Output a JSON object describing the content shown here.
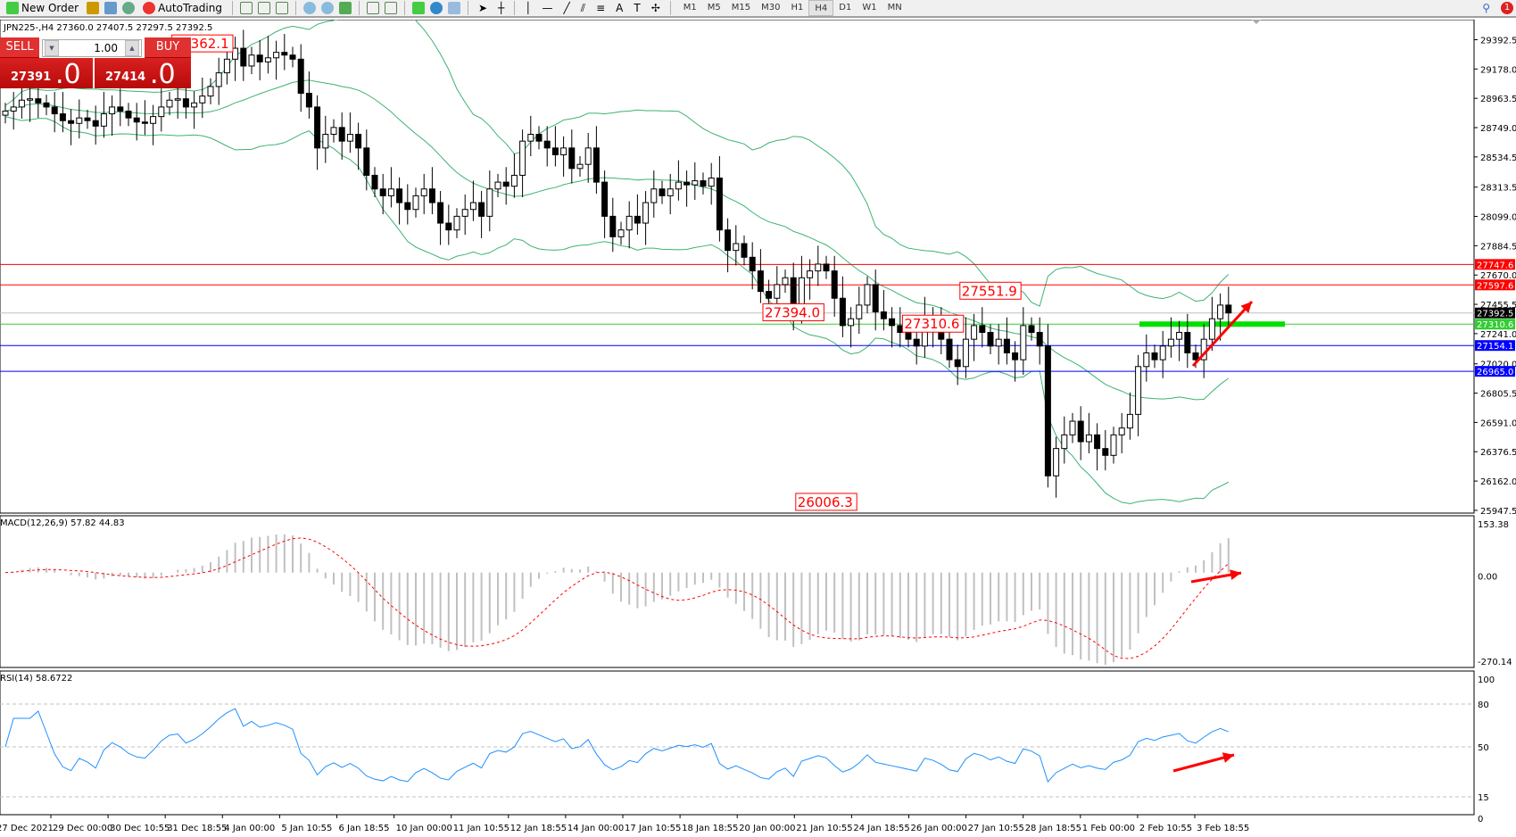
{
  "toolbar": {
    "new_order": "New Order",
    "auto_trading": "AutoTrading",
    "timeframes": [
      "M1",
      "M5",
      "M15",
      "M30",
      "H1",
      "H4",
      "D1",
      "W1",
      "MN"
    ],
    "active_timeframe": "H4",
    "notification_count": "1"
  },
  "symbol_info": "JPN225-,H4  27360.0 27407.5 27297.5 27392.5",
  "trade_panel": {
    "sell": "SELL",
    "buy": "BUY",
    "lots": "1.00",
    "sell_price_small": "27391",
    "sell_price_big": ".0",
    "buy_price_small": "27414",
    "buy_price_big": ".0"
  },
  "colors": {
    "bull_candle": "#ffffff",
    "bear_candle": "#000000",
    "bands": "#3cb371",
    "macd_hist": "#c0c0c0",
    "macd_signal": "#ff0000",
    "rsi": "#1e90ff",
    "arrow": "#ff0000"
  },
  "price_axis": [
    "29392.5",
    "29178.0",
    "28963.5",
    "28749.0",
    "28534.5",
    "28313.5",
    "28099.0",
    "27884.5",
    "27670.0",
    "27455.5",
    "27241.0",
    "27020.0",
    "26805.5",
    "26591.0",
    "26376.5",
    "26162.0",
    "25947.5"
  ],
  "horizontal_lines": [
    {
      "price": 27747.6,
      "label": "27747.6",
      "color": "#ff0000"
    },
    {
      "price": 27597.6,
      "label": "27597.6",
      "color": "#ff0000"
    },
    {
      "price": 27392.5,
      "label": "27392.5",
      "color": "#c0c0c0",
      "tag_color": "#000000"
    },
    {
      "price": 27310.6,
      "label": "27310.6",
      "color": "#32cd32"
    },
    {
      "price": 27154.1,
      "label": "27154.1",
      "color": "#0000ff"
    },
    {
      "price": 26965.0,
      "label": "26965.0",
      "color": "#0000ff"
    }
  ],
  "price_labels": [
    {
      "text": "29362.1",
      "price": 29362.1,
      "bar": 24
    },
    {
      "text": "27394.0",
      "price": 27394.0,
      "bar": 96
    },
    {
      "text": "27551.9",
      "price": 27551.9,
      "bar": 120
    },
    {
      "text": "27310.6",
      "price": 27310.6,
      "bar": 113
    },
    {
      "text": "26006.3",
      "price": 26006.3,
      "bar": 100
    }
  ],
  "closes": [
    28870,
    28900,
    28950,
    28960,
    28930,
    28900,
    28850,
    28800,
    28780,
    28820,
    28800,
    28760,
    28850,
    28900,
    28870,
    28820,
    28790,
    28780,
    28830,
    28900,
    28950,
    28960,
    28900,
    28930,
    28980,
    29050,
    29150,
    29250,
    29330,
    29200,
    29280,
    29230,
    29260,
    29300,
    29280,
    29250,
    29000,
    28900,
    28600,
    28700,
    28750,
    28650,
    28700,
    28600,
    28400,
    28300,
    28250,
    28300,
    28200,
    28150,
    28250,
    28300,
    28200,
    28050,
    28000,
    28100,
    28150,
    28200,
    28100,
    28300,
    28350,
    28320,
    28400,
    28650,
    28700,
    28650,
    28600,
    28550,
    28600,
    28450,
    28480,
    28600,
    28350,
    28100,
    27950,
    28000,
    28100,
    28050,
    28200,
    28300,
    28250,
    28300,
    28350,
    28330,
    28360,
    28320,
    28380,
    28000,
    27850,
    27900,
    27800,
    27700,
    27550,
    27500,
    27600,
    27650,
    27400,
    27650,
    27700,
    27750,
    27700,
    27500,
    27300,
    27350,
    27450,
    27600,
    27400,
    27350,
    27300,
    27250,
    27200,
    27150,
    27350,
    27300,
    27200,
    27050,
    27000,
    27200,
    27300,
    27250,
    27150,
    27200,
    27100,
    27050,
    27300,
    27250,
    27150,
    26200,
    26400,
    26500,
    26600,
    26450,
    26500,
    26400,
    26350,
    26500,
    26550,
    26650,
    27000,
    27100,
    27050,
    27150,
    27200,
    27250,
    27100,
    27050,
    27200,
    27350,
    27450,
    27392.5
  ],
  "indicators": {
    "bands": "Bands(20,2)",
    "macd": {
      "label": "MACD(12,26,9) 57.82 44.83",
      "axis": [
        "153.38",
        "0.00",
        "-270.14"
      ]
    },
    "rsi": {
      "label": "RSI(14) 58.6722",
      "axis": [
        "100",
        "80",
        "50",
        "15",
        "0"
      ],
      "levels": [
        80,
        50,
        15
      ]
    }
  },
  "time_axis": [
    "27 Dec 2021",
    "29 Dec 00:00",
    "30 Dec 10:55",
    "31 Dec 18:55",
    "4 Jan 00:00",
    "5 Jan 10:55",
    "6 Jan 18:55",
    "10 Jan 00:00",
    "11 Jan 10:55",
    "12 Jan 18:55",
    "14 Jan 00:00",
    "17 Jan 10:55",
    "18 Jan 18:55",
    "20 Jan 00:00",
    "21 Jan 10:55",
    "24 Jan 18:55",
    "26 Jan 00:00",
    "27 Jan 10:55",
    "28 Jan 18:55",
    "1 Feb 00:00",
    "2 Feb 10:55",
    "3 Feb 18:55"
  ]
}
